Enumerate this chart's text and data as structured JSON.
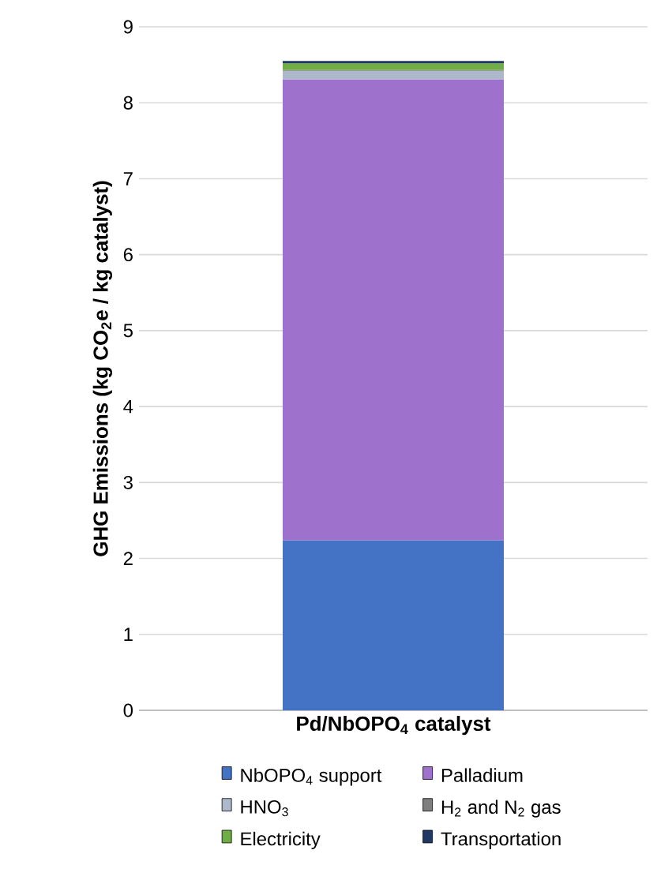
{
  "chart_data": {
    "type": "bar",
    "stacked": true,
    "ylabel": "GHG Emissions (kg CO$_{2}$e / kg catalyst)",
    "categories": [
      "Pd/NbOPO$_{4}$ catalyst"
    ],
    "series": [
      {
        "name": "NbOPO$_{4}$ support",
        "color": "#4472c4",
        "values": [
          2.24
        ]
      },
      {
        "name": "Palladium",
        "color": "#9e72cc",
        "values": [
          6.07
        ]
      },
      {
        "name": "HNO$_{3}$",
        "color": "#adb9ca",
        "values": [
          0.11
        ]
      },
      {
        "name": "H$_{2}$ and N$_{2}$ gas",
        "color": "#7f7f7f",
        "values": [
          0.01
        ]
      },
      {
        "name": "Electricity",
        "color": "#70ad47",
        "values": [
          0.09
        ]
      },
      {
        "name": "Transportation",
        "color": "#203864",
        "values": [
          0.03
        ]
      }
    ],
    "ylim": [
      0,
      9
    ],
    "yticks": [
      0,
      1,
      2,
      3,
      4,
      5,
      6,
      7,
      8,
      9
    ],
    "grid": "y",
    "legend": "bottom"
  }
}
